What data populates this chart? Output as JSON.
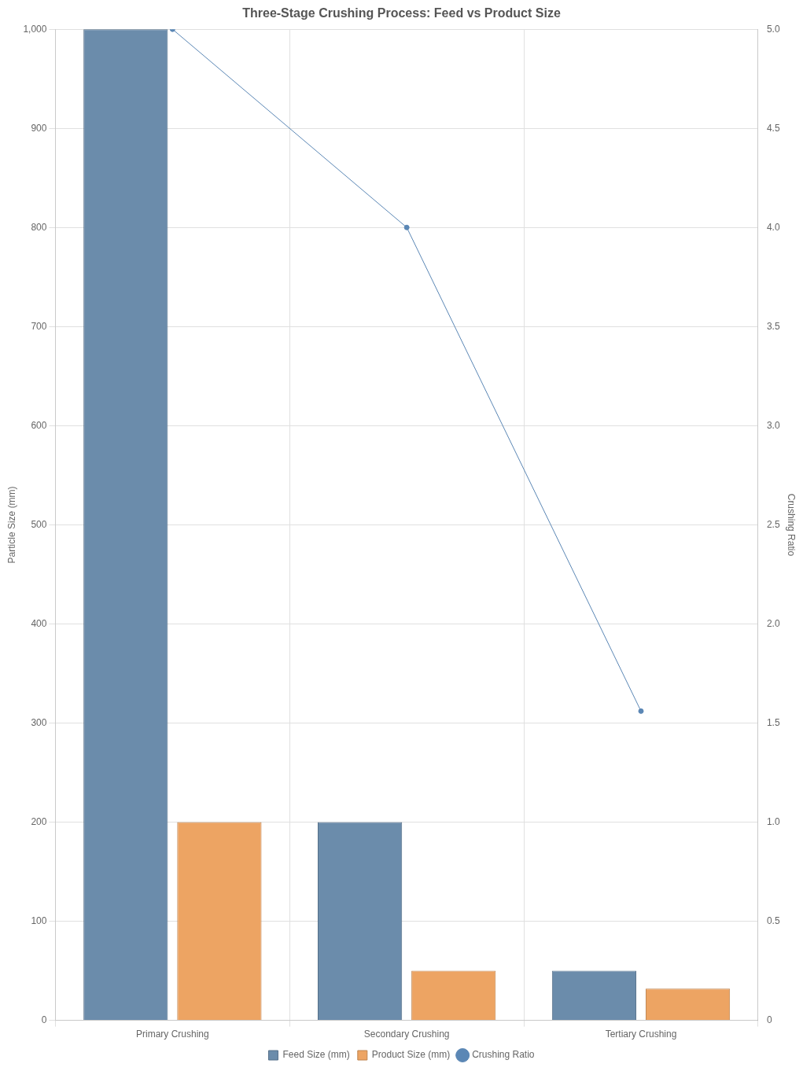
{
  "chart_data": {
    "type": "bar",
    "title": "Three-Stage Crushing Process: Feed vs Product Size",
    "categories": [
      "Primary Crushing",
      "Secondary Crushing",
      "Tertiary Crushing"
    ],
    "series": [
      {
        "name": "Feed Size (mm)",
        "color": "#6b8cab",
        "values": [
          1000,
          200,
          50
        ]
      },
      {
        "name": "Product Size (mm)",
        "color": "#eda463",
        "values": [
          200,
          50,
          32
        ]
      },
      {
        "name": "Crushing Ratio",
        "type": "line",
        "axis": "y2",
        "color": "#5b87b5",
        "values": [
          5,
          4,
          1.56
        ]
      }
    ],
    "ylabel": "Particle Size (mm)",
    "y2label": "Crushing Ratio",
    "ylim": [
      0,
      1000
    ],
    "yticks": [
      0,
      100,
      200,
      300,
      400,
      500,
      600,
      700,
      800,
      900,
      {
        "value": 1000,
        "label": "1,000"
      }
    ],
    "y2lim": [
      0,
      5
    ],
    "y2ticks": [
      0,
      0.5,
      {
        "value": 1,
        "label": "1.0"
      },
      1.5,
      {
        "value": 2,
        "label": "2.0"
      },
      2.5,
      {
        "value": 3,
        "label": "3.0"
      },
      3.5,
      {
        "value": 4,
        "label": "4.0"
      },
      4.5,
      {
        "value": 5,
        "label": "5.0"
      }
    ],
    "grid": true,
    "legend": "bottom",
    "marker": "circle"
  }
}
